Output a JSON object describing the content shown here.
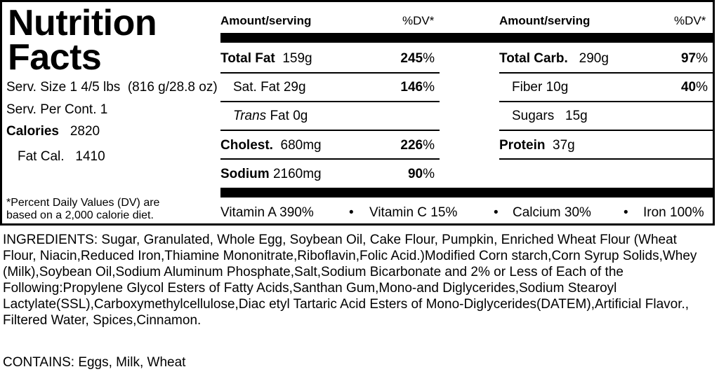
{
  "label": {
    "title_line1": "Nutrition",
    "title_line2": "Facts",
    "serving_size_label": "Serv. Size",
    "serving_size_value": "1 4/5 lbs  (816 g/28.8 oz)",
    "servings_label": "Serv. Per Cont.",
    "servings_value": "1",
    "calories_label": "Calories",
    "calories_value": "2820",
    "fat_cal_label": "Fat Cal.",
    "fat_cal_value": "1410",
    "dv_note_line1": "*Percent Daily Values (DV) are",
    "dv_note_line2": "based on a 2,000 calorie diet."
  },
  "headers": {
    "amount_serving": "Amount/serving",
    "dv": "%DV*"
  },
  "left_nutrients": {
    "total_fat": {
      "label": "Total Fat",
      "amount": "159g",
      "dv": "245",
      "unit": "%"
    },
    "sat_fat": {
      "label": "Sat. Fat",
      "amount": "29g",
      "dv": "146",
      "unit": "%"
    },
    "trans_fat": {
      "label_italic": "Trans",
      "label": "Fat",
      "amount": "0g"
    },
    "cholest": {
      "label": "Cholest.",
      "amount": "680mg",
      "dv": "226",
      "unit": "%"
    },
    "sodium": {
      "label": "Sodium",
      "amount": "2160mg",
      "dv": "90",
      "unit": "%"
    }
  },
  "right_nutrients": {
    "total_carb": {
      "label": "Total Carb.",
      "amount": "290g",
      "dv": "97",
      "unit": "%"
    },
    "fiber": {
      "label": "Fiber",
      "amount": "10g",
      "dv": "40",
      "unit": "%"
    },
    "sugars": {
      "label": "Sugars",
      "amount": "15g"
    },
    "protein": {
      "label": "Protein",
      "amount": "37g"
    }
  },
  "vitamins": {
    "bullet": "•",
    "vitamin_a": {
      "label": "Vitamin A",
      "value": "390",
      "unit": "%"
    },
    "vitamin_c": {
      "label": "Vitamin C",
      "value": "15",
      "unit": "%"
    },
    "calcium": {
      "label": "Calcium",
      "value": "30",
      "unit": "%"
    },
    "iron": {
      "label": "Iron",
      "value": "100",
      "unit": "%"
    }
  },
  "ingredients_text": "INGREDIENTS: Sugar, Granulated, Whole Egg, Soybean Oil, Cake Flour, Pumpkin, Enriched Wheat Flour (Wheat Flour, Niacin,Reduced Iron,Thiamine Mononitrate,Riboflavin,Folic Acid.)Modified Corn starch,Corn Syrup Solids,Whey (Milk),Soybean Oil,Sodium Aluminum Phosphate,Salt,Sodium Bicarbonate and 2% or Less of Each of the Following:Propylene Glycol Esters of Fatty Acids,Santhan Gum,Mono-and Diglycerides,Sodium Stearoyl Lactylate(SSL),Carboxymethylcellulose,Diac etyl Tartaric Acid Esters of Mono-Diglycerides(DATEM),Artificial Flavor., Filtered Water, Spices,Cinnamon.",
  "contains_text": "CONTAINS: Eggs, Milk, Wheat"
}
